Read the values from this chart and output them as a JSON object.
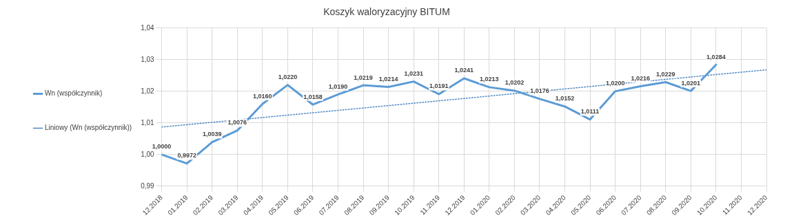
{
  "chart_data": {
    "type": "line",
    "title": "Koszyk waloryzacyjny BITUM",
    "categories": [
      "12.2018",
      "01.2019",
      "02.2019",
      "03.2019",
      "04.2019",
      "05.2019",
      "06.2019",
      "07.2019",
      "08.2019",
      "09.2019",
      "10.2019",
      "11.2019",
      "12.2019",
      "01.2020",
      "02.2020",
      "03.2020",
      "04.2020",
      "05.2020",
      "06.2020",
      "07.2020",
      "08.2020",
      "09.2020",
      "10.2020",
      "11.2020",
      "12.2020"
    ],
    "series": [
      {
        "name": "Wn (współczynnik)",
        "color": "#5b9bd5",
        "line_style": "solid",
        "values": [
          1.0,
          0.9972,
          1.0039,
          1.0076,
          1.016,
          1.022,
          1.0158,
          1.019,
          1.0219,
          1.0214,
          1.0231,
          1.0191,
          1.0241,
          1.0213,
          1.0202,
          1.0176,
          1.0152,
          1.0111,
          1.02,
          1.0216,
          1.0229,
          1.0201,
          1.0284,
          null,
          null
        ],
        "value_labels": [
          "1,0000",
          "0,9972",
          "1,0039",
          "1,0076",
          "1,0160",
          "1,0220",
          "1,0158",
          "1,0190",
          "1,0219",
          "1,0214",
          "1,0231",
          "1,0191",
          "1,0241",
          "1,0213",
          "1,0202",
          "1,0176",
          "1,0152",
          "1,0111",
          "1,0200",
          "1,0216",
          "1,0229",
          "1,0201",
          "1,0284",
          null,
          null
        ]
      },
      {
        "name": "Liniowy (Wn (współczynnik))",
        "color": "#4a86c5",
        "line_style": "dotted",
        "x": [
          "12.2018",
          "12.2020"
        ],
        "values": [
          1.0087,
          1.0268
        ]
      }
    ],
    "ylim": [
      0.99,
      1.04
    ],
    "yticks": [
      {
        "value": 0.99,
        "label": "0,99"
      },
      {
        "value": 1.0,
        "label": "1,00"
      },
      {
        "value": 1.01,
        "label": "1,01"
      },
      {
        "value": 1.02,
        "label": "1,02"
      },
      {
        "value": 1.03,
        "label": "1,03"
      },
      {
        "value": 1.04,
        "label": "1,04"
      }
    ],
    "grid": true,
    "legend": "left",
    "marker": "none"
  }
}
